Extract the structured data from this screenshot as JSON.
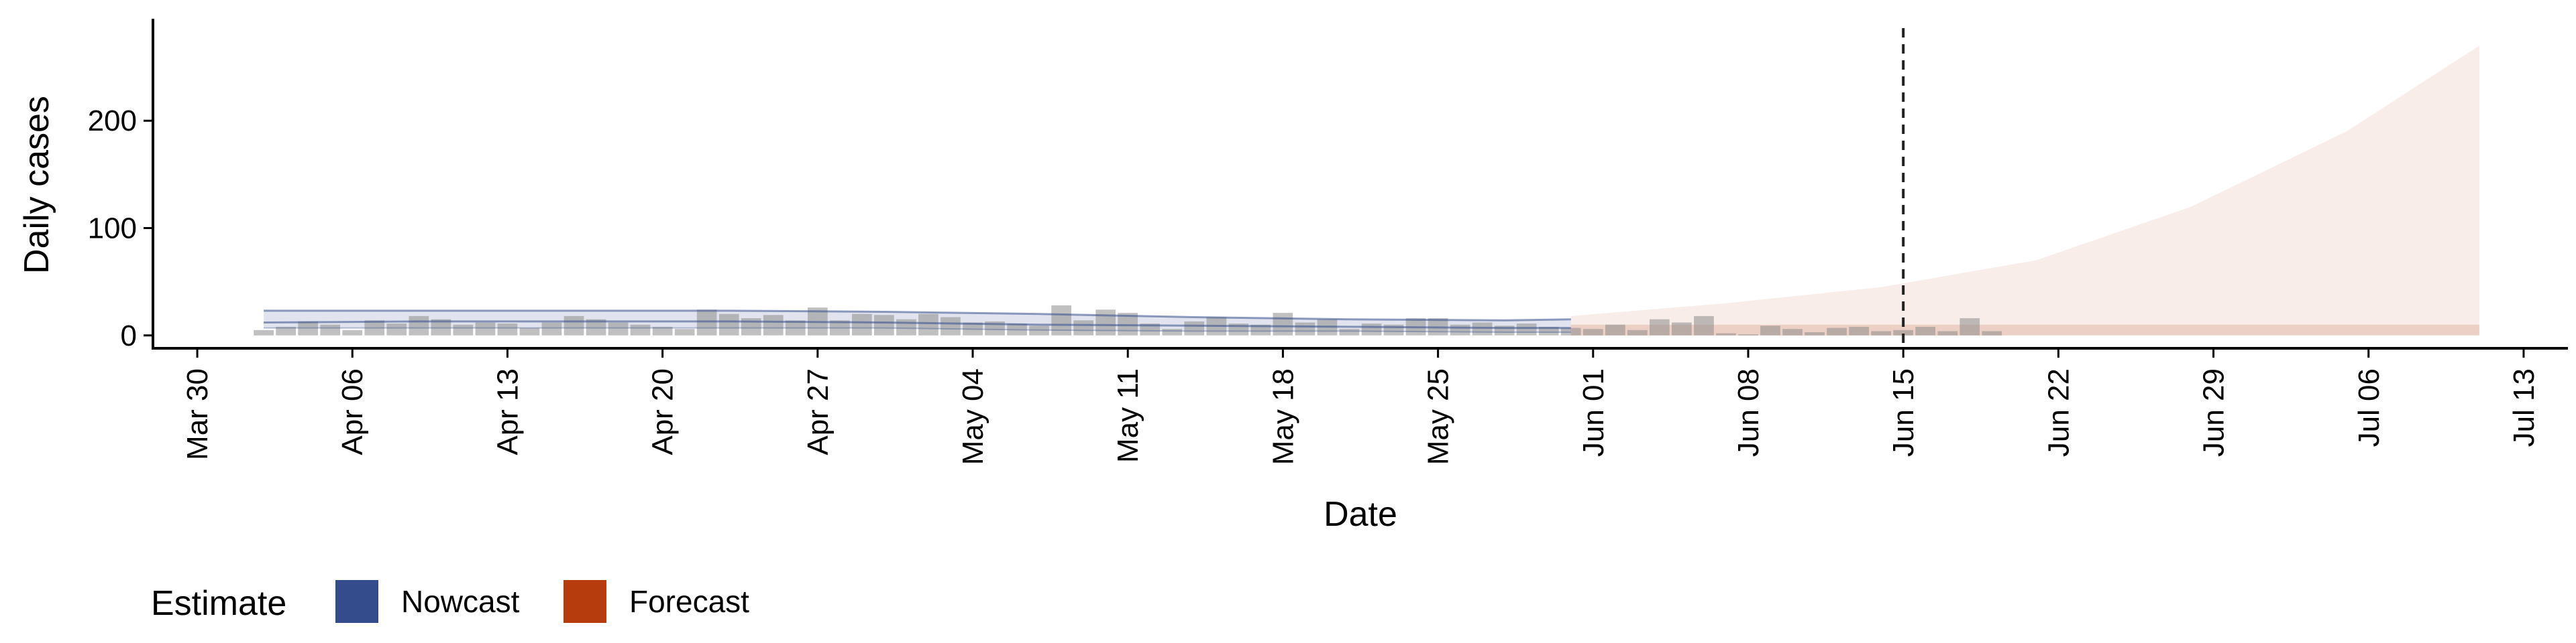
{
  "chart_data": {
    "type": "bar",
    "title": "",
    "xlabel": "Date",
    "ylabel": "Daily cases",
    "x_axis": {
      "type": "date",
      "range": [
        "2020-03-28",
        "2020-07-15"
      ],
      "ticks": [
        "2020-03-30",
        "2020-04-06",
        "2020-04-13",
        "2020-04-20",
        "2020-04-27",
        "2020-05-04",
        "2020-05-11",
        "2020-05-18",
        "2020-05-25",
        "2020-06-01",
        "2020-06-08",
        "2020-06-15",
        "2020-06-22",
        "2020-06-29",
        "2020-07-06",
        "2020-07-13"
      ],
      "tick_labels": [
        "Mar 30",
        "Apr 06",
        "Apr 13",
        "Apr 20",
        "Apr 27",
        "May 04",
        "May 11",
        "May 18",
        "May 25",
        "Jun 01",
        "Jun 08",
        "Jun 15",
        "Jun 22",
        "Jun 29",
        "Jul 06",
        "Jul 13"
      ]
    },
    "y_axis": {
      "range": [
        -12,
        295
      ],
      "ticks": [
        0,
        100,
        200
      ],
      "tick_labels": [
        "0",
        "100",
        "200"
      ]
    },
    "grid": false,
    "legend": {
      "title": "Estimate",
      "position": "bottom-left",
      "items": [
        {
          "label": "Nowcast",
          "color": "#354c8c"
        },
        {
          "label": "Forecast",
          "color": "#b63b0d"
        }
      ]
    },
    "reference_line": {
      "date": "2020-06-15",
      "style": "dashed",
      "color": "#222222"
    },
    "observed_cases": {
      "start": "2020-04-02",
      "values": [
        5,
        8,
        13,
        10,
        5,
        14,
        11,
        18,
        15,
        10,
        12,
        11,
        7,
        12,
        18,
        15,
        12,
        10,
        8,
        6,
        24,
        20,
        16,
        19,
        14,
        26,
        14,
        20,
        19,
        15,
        20,
        17,
        12,
        13,
        11,
        9,
        28,
        14,
        24,
        21,
        11,
        6,
        13,
        17,
        11,
        10,
        21,
        12,
        15,
        6,
        11,
        10,
        16,
        16,
        10,
        12,
        9,
        11,
        8,
        7,
        6,
        10,
        5,
        15,
        12,
        18,
        2,
        1,
        9,
        6,
        3,
        7,
        8,
        4,
        5,
        8,
        4,
        16,
        4
      ]
    },
    "series": [
      {
        "name": "Nowcast",
        "color": "#354c8c",
        "x": [
          "2020-04-02",
          "2020-04-09",
          "2020-04-16",
          "2020-04-23",
          "2020-04-30",
          "2020-05-07",
          "2020-05-14",
          "2020-05-21",
          "2020-05-28",
          "2020-05-31"
        ],
        "median": [
          12,
          13,
          13,
          13,
          12,
          10,
          9,
          8,
          7,
          7
        ],
        "lower": [
          7,
          7,
          7,
          7,
          7,
          5,
          4,
          4,
          3,
          3
        ],
        "upper": [
          23,
          23,
          23,
          23,
          22,
          20,
          17,
          15,
          14,
          15
        ]
      },
      {
        "name": "Forecast",
        "color": "#b63b0d",
        "x": [
          "2020-05-31",
          "2020-06-07",
          "2020-06-14",
          "2020-06-21",
          "2020-06-28",
          "2020-07-05",
          "2020-07-11"
        ],
        "lower": [
          0,
          0,
          0,
          0,
          0,
          0,
          0
        ],
        "inner_upper": [
          10,
          10,
          10,
          10,
          10,
          10,
          10
        ],
        "upper": [
          18,
          30,
          45,
          70,
          120,
          190,
          270
        ]
      }
    ]
  }
}
